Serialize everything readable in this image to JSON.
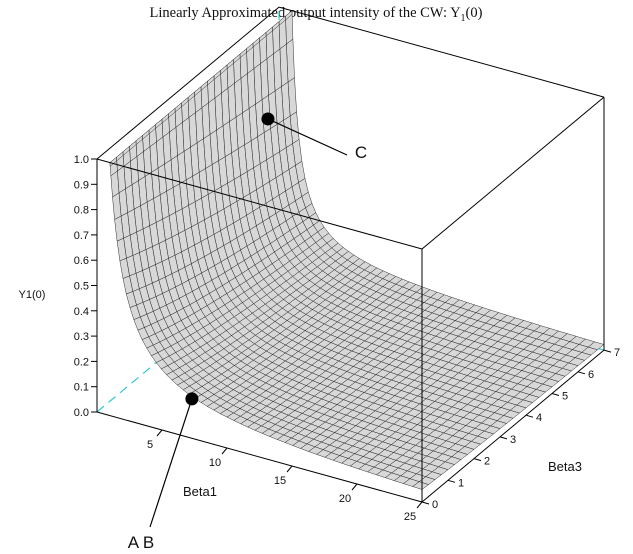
{
  "chart_data": {
    "type": "surface",
    "title_main": "Linearly Approximated output intensity of the CW: Y",
    "title_sub": "1",
    "title_tail": "(0)",
    "xlabel": "Beta1",
    "ylabel": "Beta3",
    "zlabel": "Y1(0)",
    "xlim": [
      0,
      25
    ],
    "ylim": [
      0,
      7
    ],
    "zlim": [
      0,
      1
    ],
    "x_ticks": [
      5,
      10,
      15,
      20,
      25
    ],
    "y_ticks": [
      0,
      1,
      2,
      3,
      4,
      5,
      6,
      7
    ],
    "z_ticks": [
      "0.0",
      "0.1",
      "0.2",
      "0.3",
      "0.4",
      "0.5",
      "0.6",
      "0.7",
      "0.8",
      "0.9",
      "1.0"
    ],
    "surface_model": "z = 1 / (1 + (beta1 - 1) * (0.8 + 0.15 * beta3))",
    "points": [
      {
        "label": "C",
        "beta1": 1.15,
        "beta3": 6.0,
        "y": 0.66
      },
      {
        "label": "A B",
        "beta1": 6.5,
        "beta3": 0.4,
        "y": 0.11
      }
    ],
    "callouts": [
      "C",
      "A B"
    ],
    "colors": {
      "surface_fill": "#d8d8d8",
      "mesh": "#1a1a1a",
      "axes": "#000000",
      "hidden_edges": "#33c9d6",
      "points": "#000000"
    },
    "grid": false,
    "legend": "none"
  }
}
